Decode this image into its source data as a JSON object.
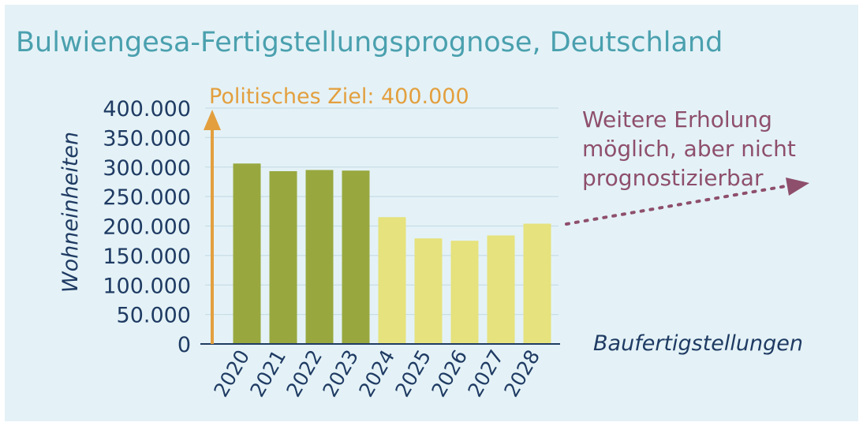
{
  "chart_data": {
    "type": "bar",
    "title": "Bulwiengesa-Fertigstellungsprognose, Deutschland",
    "ylabel": "Wohneinheiten",
    "xlabel": "Baufertigstellungen",
    "categories": [
      "2020",
      "2021",
      "2022",
      "2023",
      "2024",
      "2025",
      "2026",
      "2027",
      "2028"
    ],
    "values": [
      306000,
      293000,
      295000,
      294000,
      215000,
      179000,
      175000,
      184000,
      204000
    ],
    "bar_colors": [
      "#98a83f",
      "#98a83f",
      "#98a83f",
      "#98a83f",
      "#e6e27d",
      "#e6e27d",
      "#e6e27d",
      "#e6e27d",
      "#e6e27d"
    ],
    "ylim": [
      0,
      400000
    ],
    "yticks": [
      0,
      50000,
      100000,
      150000,
      200000,
      250000,
      300000,
      350000,
      400000
    ],
    "ytick_labels": [
      "0",
      "50.000",
      "100.000",
      "150.000",
      "200.000",
      "250.000",
      "300.000",
      "350.000",
      "400.000"
    ],
    "target": {
      "label": "Politisches Ziel: 400.000",
      "value": 400000,
      "color": "#e39f3e"
    },
    "annotation": {
      "lines": [
        "Weitere Erholung",
        "möglich, aber nicht",
        "prognostizierbar"
      ],
      "color": "#8e4f6c"
    },
    "grid": true,
    "colors": {
      "title": "#4aa0ae",
      "axis_text": "#1f3b63",
      "grid": "#c8dde5",
      "background": "#e4f2f7"
    }
  }
}
